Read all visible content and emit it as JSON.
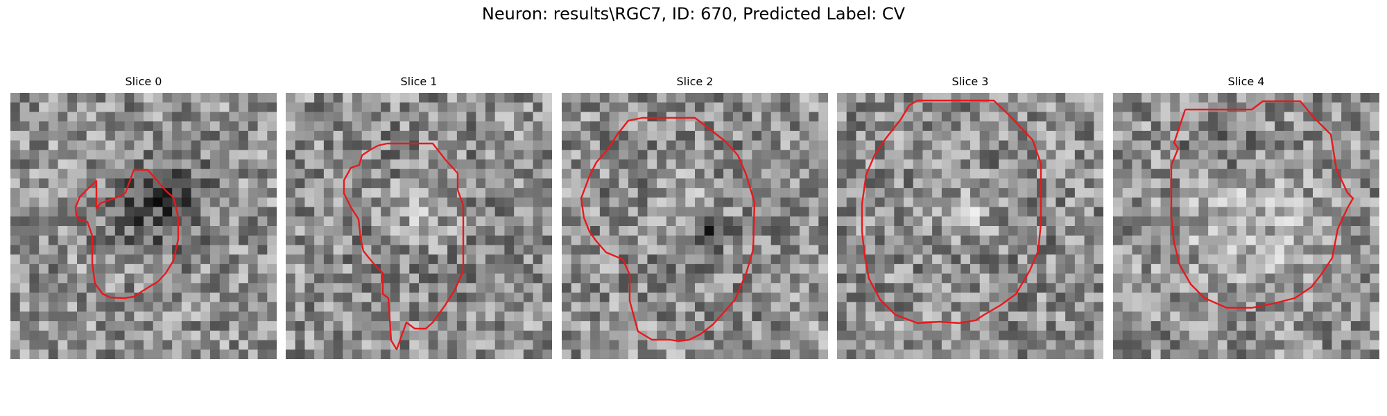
{
  "figure": {
    "title": "Neuron: results\\RGC7, ID: 670, Predicted Label: CV",
    "contour_color": "#e8191c",
    "grid_size": 28
  },
  "slices": [
    {
      "title": "Slice 0",
      "pattern": "dark-blob"
    },
    {
      "title": "Slice 1",
      "pattern": "ring"
    },
    {
      "title": "Slice 2",
      "pattern": "ring-dark-center"
    },
    {
      "title": "Slice 3",
      "pattern": "ring"
    },
    {
      "title": "Slice 4",
      "pattern": "bright-disc"
    }
  ]
}
